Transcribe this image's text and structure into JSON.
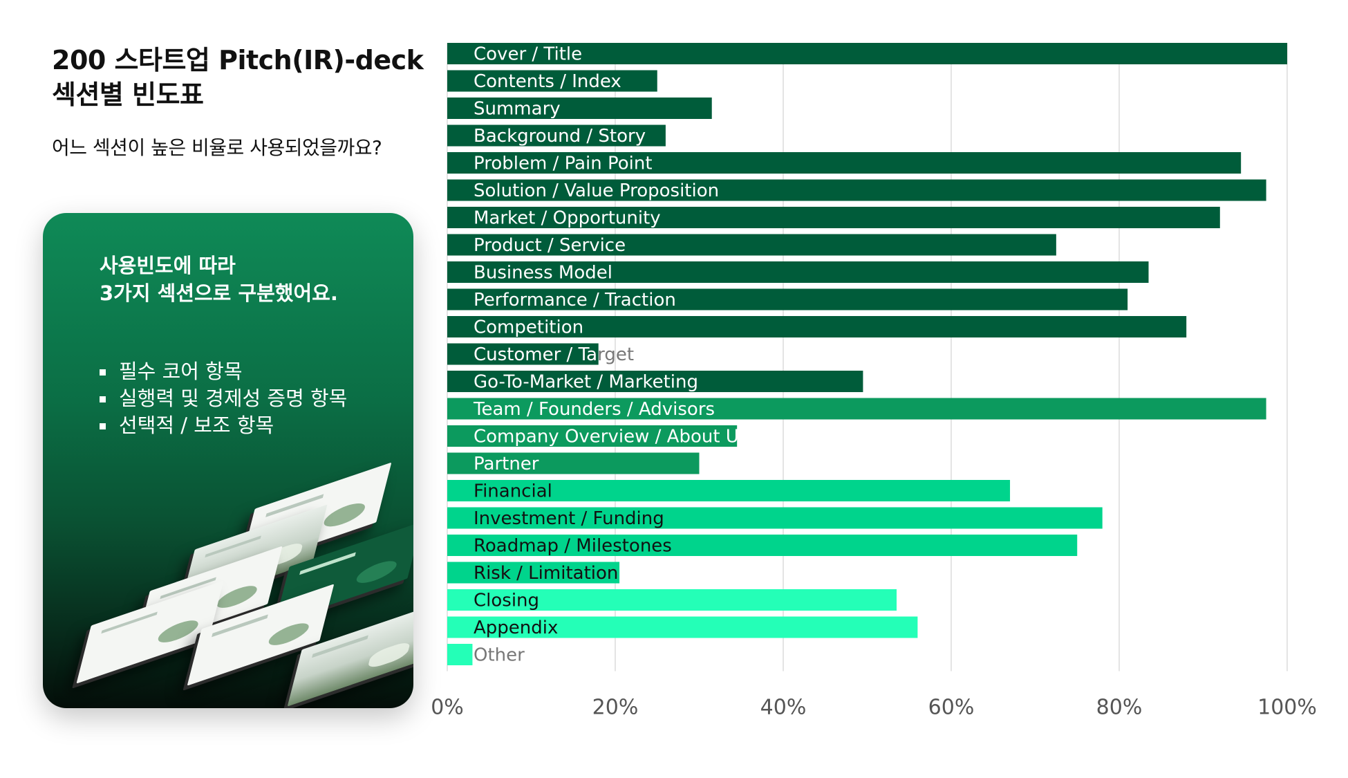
{
  "title": {
    "line1": "200 스타트업  Pitch(IR)-deck",
    "line2": "섹션별 빈도표"
  },
  "subtitle": "어느 섹션이 높은 비율로 사용되었을까요?",
  "card": {
    "heading_line1": "사용빈도에 따라",
    "heading_line2": "3가지 섹션으로 구분했어요.",
    "items": [
      "필수 코어 항목",
      "실행력 및 경제성 증명 항목",
      "선택적 / 보조 항목"
    ]
  },
  "chart_data": {
    "type": "bar",
    "orientation": "horizontal",
    "title": "",
    "xlabel": "",
    "ylabel": "",
    "xlim": [
      0,
      100
    ],
    "x_ticks": [
      "0%",
      "20%",
      "40%",
      "60%",
      "80%",
      "100%"
    ],
    "grid": "vertical",
    "categories": [
      "Cover / Title",
      "Contents / Index",
      "Summary",
      "Background / Story",
      "Problem / Pain Point",
      "Solution / Value Proposition",
      "Market / Opportunity",
      "Product / Service",
      "Business Model",
      "Performance / Traction",
      "Competition",
      "Customer / Target",
      "Go-To-Market / Marketing",
      "Team / Founders / Advisors",
      "Company Overview / About Us",
      "Partner",
      "Financial",
      "Investment / Funding",
      "Roadmap / Milestones",
      "Risk / Limitation",
      "Closing",
      "Appendix",
      "Other"
    ],
    "values": [
      100,
      25,
      31.5,
      26,
      94.5,
      97.5,
      92,
      72.5,
      83.5,
      81,
      88,
      18,
      49.5,
      97.5,
      34.5,
      30,
      67,
      78,
      75,
      20.5,
      53.5,
      56,
      3
    ],
    "groups": [
      0,
      0,
      0,
      0,
      0,
      0,
      0,
      0,
      0,
      0,
      0,
      0,
      0,
      1,
      1,
      1,
      2,
      2,
      2,
      2,
      3,
      3,
      3
    ],
    "group_colors": [
      "#005c3a",
      "#0c9a5e",
      "#00d48c",
      "#24ffb7"
    ]
  }
}
